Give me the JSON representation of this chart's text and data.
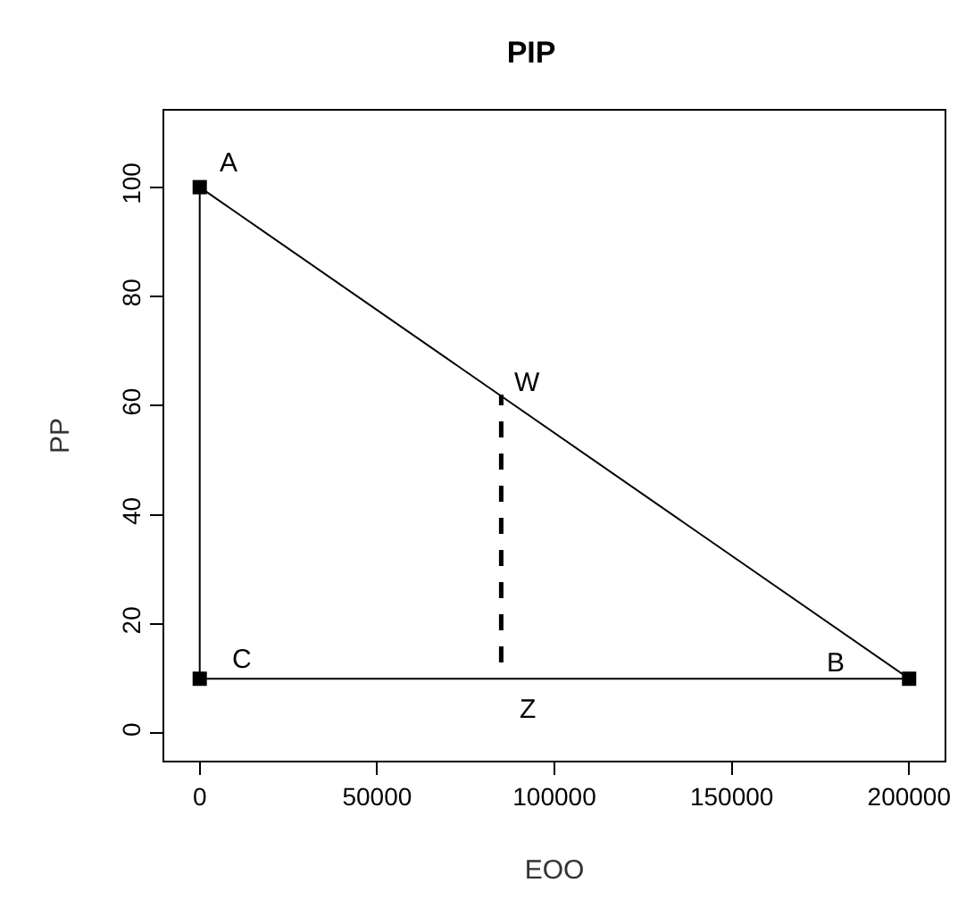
{
  "chart_data": {
    "type": "line",
    "title": "PIP",
    "xlabel": "EOO",
    "ylabel": "PP",
    "xlim": [
      -10000,
      210000
    ],
    "xticks": [
      0,
      50000,
      100000,
      150000,
      200000
    ],
    "ylim": [
      -5,
      114
    ],
    "yticks": [
      0,
      20,
      40,
      60,
      80,
      100
    ],
    "grid": false,
    "series": [
      {
        "type": "scatter",
        "color": "#000000",
        "marker": "square",
        "x": [
          0,
          200000,
          0
        ],
        "values": [
          100,
          10,
          10
        ]
      },
      {
        "color": "#000000",
        "marker": "none",
        "line_style": "solid",
        "x": [
          0,
          200000
        ],
        "values": [
          100,
          10
        ]
      },
      {
        "color": "#000000",
        "marker": "none",
        "line_style": "solid",
        "x": [
          0,
          0
        ],
        "values": [
          100,
          10
        ]
      },
      {
        "color": "#000000",
        "marker": "none",
        "line_style": "solid",
        "x": [
          0,
          200000
        ],
        "values": [
          10,
          10
        ]
      },
      {
        "color": "#000000",
        "marker": "none",
        "line_style": "dashed",
        "x": [
          85000,
          85000
        ],
        "values": [
          13,
          62
        ]
      }
    ],
    "annotations": [
      {
        "text": "A",
        "x": 0,
        "y": 100
      },
      {
        "text": "W",
        "x": 85000,
        "y": 62
      },
      {
        "text": "C",
        "x": 0,
        "y": 10
      },
      {
        "text": "B",
        "x": 200000,
        "y": 10
      },
      {
        "text": "Z",
        "x": 85000,
        "y": 10
      }
    ]
  }
}
